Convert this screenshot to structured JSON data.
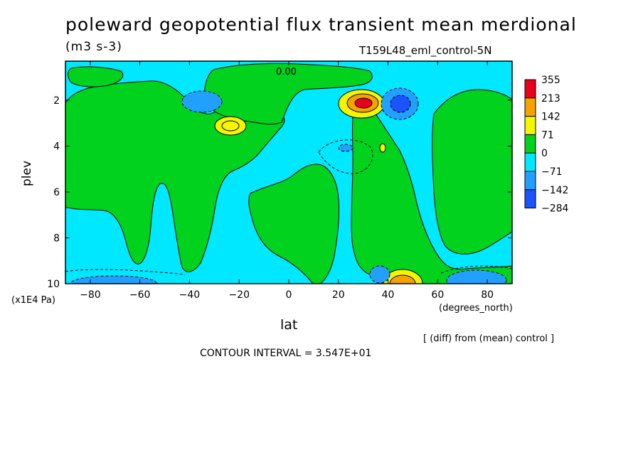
{
  "chart_data": {
    "type": "heatmap",
    "title": "poleward geopotential flux transient mean merdional",
    "units": "(m3 s-3)",
    "run_label": "T159L48_eml_control-5N",
    "xlabel": "lat",
    "x_units": "(degrees_north)",
    "ylabel": "plev",
    "y_units": "(x1E4 Pa)",
    "xlim": [
      -90,
      90
    ],
    "ylim": [
      0.3,
      10
    ],
    "y_inverted": true,
    "x_ticks": [
      -80,
      -60,
      -40,
      -20,
      0,
      20,
      40,
      60,
      80
    ],
    "y_ticks": [
      2,
      4,
      6,
      8,
      10
    ],
    "colorbar": {
      "levels": [
        "355",
        "213",
        "142",
        "71",
        "0",
        "−71",
        "−142",
        "−284"
      ],
      "colors": [
        "#e8001c",
        "#f5a300",
        "#f5f500",
        "#00d21e",
        "#00e8ff",
        "#22a0ff",
        "#1c52ff"
      ]
    },
    "contour_label": "0.00",
    "contour_interval_text": "CONTOUR INTERVAL = 3.547E+01",
    "footnote": "[ (diff) from (mean) control ]",
    "features": [
      {
        "lat": 30,
        "plev": 2.0,
        "value": 355
      },
      {
        "lat": -24,
        "plev": 3.0,
        "value": 142
      },
      {
        "lat": 46,
        "plev": 10.0,
        "value": 213
      },
      {
        "lat": 39,
        "plev": 3.9,
        "value": 71
      },
      {
        "lat": -33,
        "plev": 2.0,
        "value": -142
      },
      {
        "lat": 45,
        "plev": 2.0,
        "value": -284
      },
      {
        "lat": 22,
        "plev": 4.0,
        "value": -142
      },
      {
        "lat": 72,
        "plev": 9.9,
        "value": -142
      },
      {
        "lat": 40,
        "plev": 9.7,
        "value": -142
      },
      {
        "lat": -80,
        "plev": 9.9,
        "value": -71
      }
    ]
  }
}
